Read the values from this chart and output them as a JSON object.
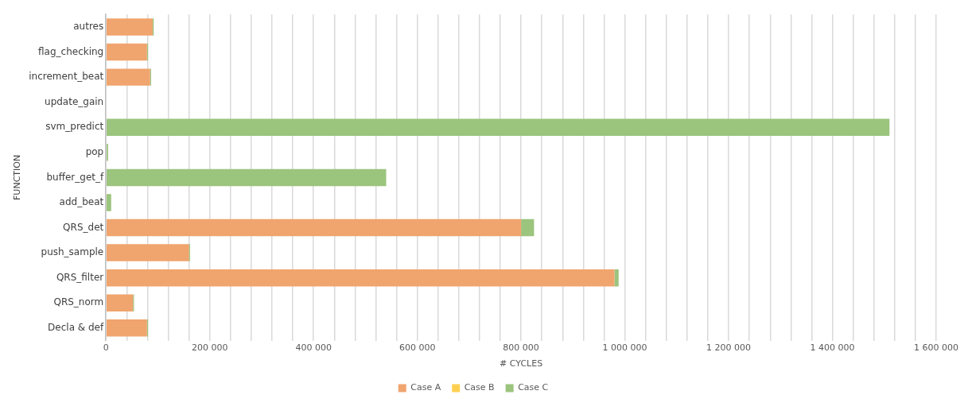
{
  "chart_data": {
    "type": "bar",
    "orientation": "horizontal",
    "stacked": true,
    "xlabel": "# CYCLES",
    "ylabel": "FUNCTION",
    "categories": [
      "autres",
      "flag_checking",
      "increment_beat",
      "update_gain",
      "svm_predict",
      "pop",
      "buffer_get_f",
      "add_beat",
      "QRS_det",
      "push_sample",
      "QRS_filter",
      "QRS_norm",
      "Decla & def"
    ],
    "series": [
      {
        "name": "Case A",
        "color": "#f0a46e",
        "values": [
          90000,
          79000,
          85000,
          0,
          0,
          0,
          0,
          0,
          800000,
          160000,
          980000,
          52000,
          79000
        ]
      },
      {
        "name": "Case B",
        "color": "#ffd04f",
        "values": [
          0,
          0,
          0,
          0,
          0,
          0,
          0,
          0,
          0,
          0,
          0,
          0,
          0
        ]
      },
      {
        "name": "Case C",
        "color": "#9bc47d",
        "values": [
          2000,
          2000,
          2000,
          0,
          1510000,
          4000,
          540000,
          10000,
          25000,
          2000,
          8000,
          2000,
          2000
        ]
      }
    ],
    "xlim": [
      0,
      1600000
    ],
    "xticks": [
      0,
      {
        "value": 40000,
        "label": null
      },
      {
        "value": 80000,
        "label": null
      },
      {
        "value": 120000,
        "label": null
      },
      {
        "value": 160000,
        "label": null
      },
      {
        "value": 200000,
        "label": "200 000"
      },
      {
        "value": 240000,
        "label": null
      },
      {
        "value": 280000,
        "label": null
      },
      {
        "value": 320000,
        "label": null
      },
      {
        "value": 360000,
        "label": null
      },
      {
        "value": 400000,
        "label": "400 000"
      },
      {
        "value": 440000,
        "label": null
      },
      {
        "value": 480000,
        "label": null
      },
      {
        "value": 520000,
        "label": null
      },
      {
        "value": 560000,
        "label": null
      },
      {
        "value": 600000,
        "label": "600 000"
      },
      {
        "value": 640000,
        "label": null
      },
      {
        "value": 680000,
        "label": null
      },
      {
        "value": 720000,
        "label": null
      },
      {
        "value": 760000,
        "label": null
      },
      {
        "value": 800000,
        "label": "800 000"
      },
      {
        "value": 840000,
        "label": null
      },
      {
        "value": 880000,
        "label": null
      },
      {
        "value": 920000,
        "label": null
      },
      {
        "value": 960000,
        "label": null
      },
      {
        "value": 1000000,
        "label": "1 000 000"
      },
      {
        "value": 1040000,
        "label": null
      },
      {
        "value": 1080000,
        "label": null
      },
      {
        "value": 1120000,
        "label": null
      },
      {
        "value": 1160000,
        "label": null
      },
      {
        "value": 1200000,
        "label": "1 200 000"
      },
      {
        "value": 1240000,
        "label": null
      },
      {
        "value": 1280000,
        "label": null
      },
      {
        "value": 1320000,
        "label": null
      },
      {
        "value": 1360000,
        "label": null
      },
      {
        "value": 1400000,
        "label": "1 400 000"
      },
      {
        "value": 1440000,
        "label": null
      },
      {
        "value": 1480000,
        "label": null
      },
      {
        "value": 1520000,
        "label": null
      },
      {
        "value": 1560000,
        "label": null
      },
      {
        "value": 1600000,
        "label": "1 600 000"
      }
    ],
    "grid": "x",
    "legend": "bottom"
  }
}
